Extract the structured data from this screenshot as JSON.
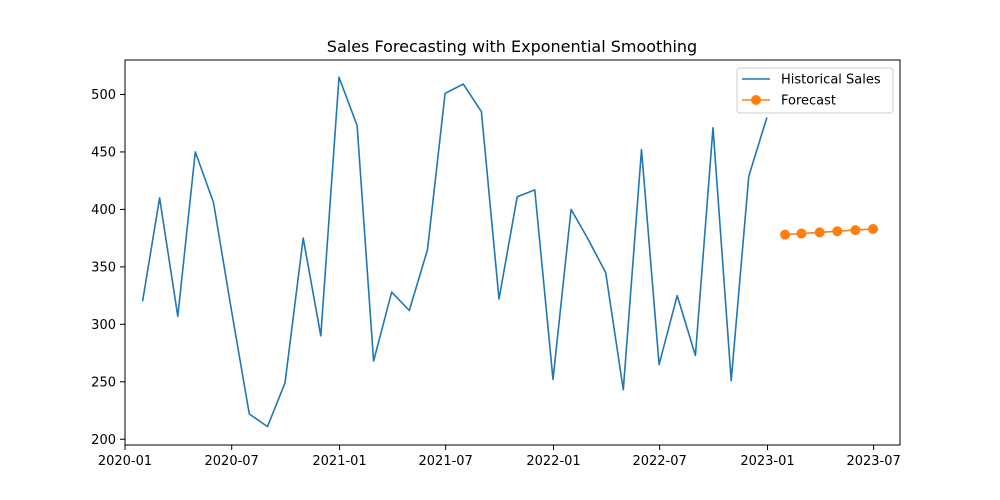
{
  "chart_data": {
    "type": "line",
    "title": "Sales Forecasting with Exponential Smoothing",
    "xlabel": "",
    "ylabel": "",
    "xlim": [
      "2020-01-01",
      "2023-08-15"
    ],
    "ylim": [
      195,
      530
    ],
    "x_ticks": [
      "2020-01",
      "2020-07",
      "2021-01",
      "2021-07",
      "2022-01",
      "2022-07",
      "2023-01",
      "2023-07"
    ],
    "y_ticks": [
      200,
      250,
      300,
      350,
      400,
      450,
      500
    ],
    "grid": false,
    "legend": "top-right",
    "series": [
      {
        "name": "Historical Sales",
        "color": "#1f77b4",
        "marker": "none",
        "x": [
          "2020-01-31",
          "2020-02-29",
          "2020-03-31",
          "2020-04-30",
          "2020-05-31",
          "2020-06-30",
          "2020-07-31",
          "2020-08-31",
          "2020-09-30",
          "2020-10-31",
          "2020-11-30",
          "2020-12-31",
          "2021-01-31",
          "2021-02-28",
          "2021-03-31",
          "2021-04-30",
          "2021-05-31",
          "2021-06-30",
          "2021-07-31",
          "2021-08-31",
          "2021-09-30",
          "2021-10-31",
          "2021-11-30",
          "2021-12-31",
          "2022-01-31",
          "2022-02-28",
          "2022-03-31",
          "2022-04-30",
          "2022-05-31",
          "2022-06-30",
          "2022-07-31",
          "2022-08-31",
          "2022-09-30",
          "2022-10-31",
          "2022-11-30",
          "2022-12-31"
        ],
        "values": [
          320,
          410,
          307,
          450,
          406,
          314,
          222,
          211,
          249,
          375,
          290,
          515,
          473,
          268,
          328,
          312,
          365,
          501,
          509,
          485,
          322,
          411,
          417,
          252,
          400,
          375,
          345,
          243,
          452,
          265,
          325,
          273,
          471,
          251,
          429,
          480
        ]
      },
      {
        "name": "Forecast",
        "color": "#ff7f0e",
        "marker": "circle",
        "x": [
          "2023-01-31",
          "2023-02-28",
          "2023-03-31",
          "2023-04-30",
          "2023-05-31",
          "2023-06-30"
        ],
        "values": [
          378.0,
          379.0,
          380.0,
          381.0,
          382.0,
          383.0
        ]
      }
    ]
  }
}
